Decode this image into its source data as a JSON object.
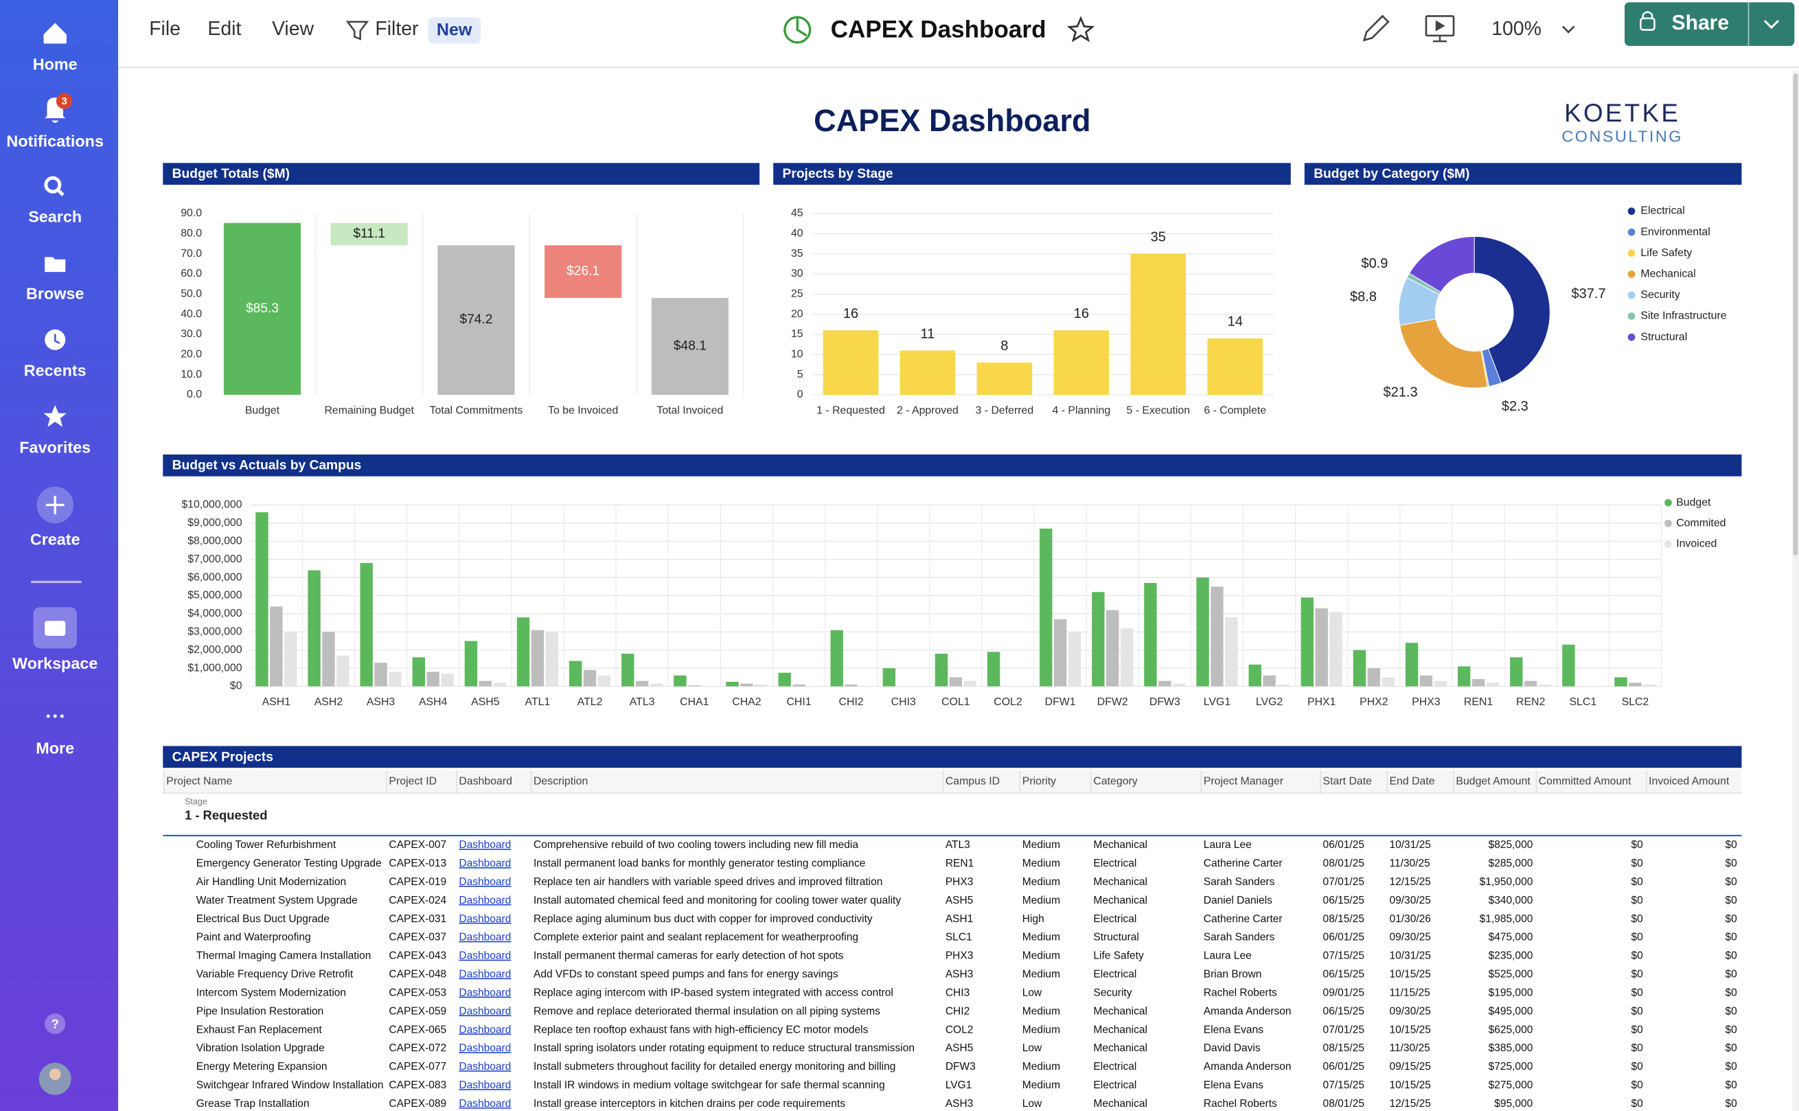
{
  "sidebar": {
    "items": [
      "Home",
      "Notifications",
      "Search",
      "Browse",
      "Recents",
      "Favorites",
      "Create",
      "Workspace",
      "More"
    ],
    "notification_count": "3"
  },
  "toolbar": {
    "menu": [
      "File",
      "Edit",
      "View",
      "Filter"
    ],
    "badge": "New",
    "title": "CAPEX Dashboard",
    "zoom": "100%",
    "share": "Share"
  },
  "dashboard": {
    "title": "CAPEX Dashboard",
    "logo": [
      "KOETKE",
      "CONSULTING"
    ]
  },
  "chart_data": [
    {
      "type": "waterfall",
      "title": "Budget Totals ($M)",
      "categories": [
        "Budget",
        "Remaining Budget",
        "Total Commitments",
        "To be Invoiced",
        "Total Invoiced"
      ],
      "values": [
        85.3,
        11.1,
        74.2,
        26.1,
        48.1
      ],
      "value_labels": [
        "$85.3",
        "$11.1",
        "$74.2",
        "$26.1",
        "$48.1"
      ],
      "measure": [
        "total",
        "decrease",
        "total",
        "decrease",
        "total"
      ],
      "colors": [
        "#5cb85c",
        "#c8e8c2",
        "#bdbdbd",
        "#ec847c",
        "#bdbdbd"
      ],
      "ylim": [
        0,
        90
      ],
      "yticks": [
        {
          "value": 0,
          "label": "0.0"
        },
        {
          "value": 10,
          "label": "10.0"
        },
        {
          "value": 20,
          "label": "20.0"
        },
        {
          "value": 30,
          "label": "30.0"
        },
        {
          "value": 40,
          "label": "40.0"
        },
        {
          "value": 50,
          "label": "50.0"
        },
        {
          "value": 60,
          "label": "60.0"
        },
        {
          "value": 70,
          "label": "70.0"
        },
        {
          "value": 80,
          "label": "80.0"
        },
        {
          "value": 90,
          "label": "90.0"
        }
      ],
      "grid": false
    },
    {
      "type": "bar",
      "title": "Projects by Stage",
      "categories": [
        "1 - Requested",
        "2 - Approved",
        "3 - Deferred",
        "4 - Planning",
        "5 - Execution",
        "6 - Complete"
      ],
      "values": [
        16,
        11,
        8,
        16,
        35,
        14
      ],
      "color": "#f8d84a",
      "ylim": [
        0,
        45
      ],
      "yticks": [
        0,
        5,
        10,
        15,
        20,
        25,
        30,
        35,
        40,
        45
      ],
      "grid": true
    },
    {
      "type": "donut",
      "title": "Budget by Category ($M)",
      "categories": [
        "Electrical",
        "Environmental",
        "Life Safety",
        "Mechanical",
        "Security",
        "Site Infrastructure",
        "Structural"
      ],
      "values": [
        37.7,
        2.3,
        0.3,
        21.3,
        8.8,
        0.9,
        14.0
      ],
      "value_labels": [
        "$37.7",
        "$2.3",
        null,
        "$21.3",
        "$8.8",
        "$0.9",
        null
      ],
      "colors": [
        "#1a2f8f",
        "#5a7fd8",
        "#f5d547",
        "#e6a23c",
        "#a3cdf0",
        "#86c2b6",
        "#6a48d8"
      ],
      "legend": "right"
    },
    {
      "type": "grouped_bar",
      "title": "Budget vs Actuals by Campus",
      "categories": [
        "ASH1",
        "ASH2",
        "ASH3",
        "ASH4",
        "ASH5",
        "ATL1",
        "ATL2",
        "ATL3",
        "CHA1",
        "CHA2",
        "CHI1",
        "CHI2",
        "CHI3",
        "COL1",
        "COL2",
        "DFW1",
        "DFW2",
        "DFW3",
        "LVG1",
        "LVG2",
        "PHX1",
        "PHX2",
        "PHX3",
        "REN1",
        "REN2",
        "SLC1",
        "SLC2"
      ],
      "series": [
        {
          "name": "Budget",
          "color": "#5cb85c",
          "values": [
            9600000,
            6400000,
            6800000,
            1600000,
            2500000,
            3800000,
            1400000,
            1800000,
            600000,
            250000,
            750000,
            3100000,
            1000000,
            1800000,
            1900000,
            8700000,
            5200000,
            5700000,
            6000000,
            1200000,
            4900000,
            2000000,
            2400000,
            1100000,
            1600000,
            2300000,
            500000
          ]
        },
        {
          "name": "Commited",
          "color": "#bdbdbd",
          "values": [
            4400000,
            3000000,
            1300000,
            800000,
            300000,
            3100000,
            900000,
            300000,
            50000,
            150000,
            100000,
            100000,
            0,
            500000,
            0,
            3700000,
            4200000,
            300000,
            5500000,
            600000,
            4300000,
            1000000,
            600000,
            400000,
            300000,
            0,
            200000
          ]
        },
        {
          "name": "Invoiced",
          "color": "#e4e4e4",
          "values": [
            3000000,
            1700000,
            800000,
            700000,
            200000,
            3000000,
            600000,
            150000,
            0,
            100000,
            0,
            0,
            0,
            300000,
            0,
            3000000,
            3200000,
            150000,
            3800000,
            100000,
            4100000,
            500000,
            300000,
            200000,
            100000,
            0,
            100000
          ]
        }
      ],
      "ylim": [
        0,
        10000000
      ],
      "yticks": [
        {
          "value": 0,
          "label": "$0"
        },
        {
          "value": 1000000,
          "label": "$1,000,000"
        },
        {
          "value": 2000000,
          "label": "$2,000,000"
        },
        {
          "value": 3000000,
          "label": "$3,000,000"
        },
        {
          "value": 4000000,
          "label": "$4,000,000"
        },
        {
          "value": 5000000,
          "label": "$5,000,000"
        },
        {
          "value": 6000000,
          "label": "$6,000,000"
        },
        {
          "value": 7000000,
          "label": "$7,000,000"
        },
        {
          "value": 8000000,
          "label": "$8,000,000"
        },
        {
          "value": 9000000,
          "label": "$9,000,000"
        },
        {
          "value": 10000000,
          "label": "$10,000,000"
        }
      ],
      "grid": true,
      "legend": "right"
    }
  ],
  "table": {
    "title": "CAPEX Projects",
    "columns": [
      "Project Name",
      "Project ID",
      "Dashboard",
      "Description",
      "Campus ID",
      "Priority",
      "Category",
      "Project Manager",
      "Start Date",
      "End Date",
      "Budget Amount",
      "Committed Amount",
      "Invoiced Amount"
    ],
    "group_label": "Stage",
    "group": "1 - Requested",
    "rows": [
      [
        "Cooling Tower Refurbishment",
        "CAPEX-007",
        "Dashboard",
        "Comprehensive rebuild of two cooling towers including new fill media",
        "ATL3",
        "Medium",
        "Mechanical",
        "Laura Lee",
        "06/01/25",
        "10/31/25",
        "$825,000",
        "$0",
        "$0"
      ],
      [
        "Emergency Generator Testing Upgrade",
        "CAPEX-013",
        "Dashboard",
        "Install permanent load banks for monthly generator testing compliance",
        "REN1",
        "Medium",
        "Electrical",
        "Catherine Carter",
        "08/01/25",
        "11/30/25",
        "$285,000",
        "$0",
        "$0"
      ],
      [
        "Air Handling Unit Modernization",
        "CAPEX-019",
        "Dashboard",
        "Replace ten air handlers with variable speed drives and improved filtration",
        "PHX3",
        "Medium",
        "Mechanical",
        "Sarah Sanders",
        "07/01/25",
        "12/15/25",
        "$1,950,000",
        "$0",
        "$0"
      ],
      [
        "Water Treatment System Upgrade",
        "CAPEX-024",
        "Dashboard",
        "Install automated chemical feed and monitoring for cooling tower water quality",
        "ASH5",
        "Medium",
        "Mechanical",
        "Daniel Daniels",
        "06/15/25",
        "09/30/25",
        "$340,000",
        "$0",
        "$0"
      ],
      [
        "Electrical Bus Duct Upgrade",
        "CAPEX-031",
        "Dashboard",
        "Replace aging aluminum bus duct with copper for improved conductivity",
        "ASH1",
        "High",
        "Electrical",
        "Catherine Carter",
        "08/15/25",
        "01/30/26",
        "$1,985,000",
        "$0",
        "$0"
      ],
      [
        "Paint and Waterproofing",
        "CAPEX-037",
        "Dashboard",
        "Complete exterior paint and sealant replacement for weatherproofing",
        "SLC1",
        "Medium",
        "Structural",
        "Sarah Sanders",
        "06/01/25",
        "09/30/25",
        "$475,000",
        "$0",
        "$0"
      ],
      [
        "Thermal Imaging Camera Installation",
        "CAPEX-043",
        "Dashboard",
        "Install permanent thermal cameras for early detection of hot spots",
        "PHX3",
        "Medium",
        "Life Safety",
        "Laura Lee",
        "07/15/25",
        "10/31/25",
        "$235,000",
        "$0",
        "$0"
      ],
      [
        "Variable Frequency Drive Retrofit",
        "CAPEX-048",
        "Dashboard",
        "Add VFDs to constant speed pumps and fans for energy savings",
        "ASH3",
        "Medium",
        "Electrical",
        "Brian Brown",
        "06/15/25",
        "10/15/25",
        "$525,000",
        "$0",
        "$0"
      ],
      [
        "Intercom System Modernization",
        "CAPEX-053",
        "Dashboard",
        "Replace aging intercom with IP-based system integrated with access control",
        "CHI3",
        "Low",
        "Security",
        "Rachel Roberts",
        "09/01/25",
        "11/15/25",
        "$195,000",
        "$0",
        "$0"
      ],
      [
        "Pipe Insulation Restoration",
        "CAPEX-059",
        "Dashboard",
        "Remove and replace deteriorated thermal insulation on all piping systems",
        "CHI2",
        "Medium",
        "Mechanical",
        "Amanda Anderson",
        "06/15/25",
        "09/30/25",
        "$495,000",
        "$0",
        "$0"
      ],
      [
        "Exhaust Fan Replacement",
        "CAPEX-065",
        "Dashboard",
        "Replace ten rooftop exhaust fans with high-efficiency EC motor models",
        "COL2",
        "Medium",
        "Mechanical",
        "Elena Evans",
        "07/01/25",
        "10/15/25",
        "$625,000",
        "$0",
        "$0"
      ],
      [
        "Vibration Isolation Upgrade",
        "CAPEX-072",
        "Dashboard",
        "Install spring isolators under rotating equipment to reduce structural transmission",
        "ASH5",
        "Low",
        "Mechanical",
        "David Davis",
        "08/15/25",
        "11/30/25",
        "$385,000",
        "$0",
        "$0"
      ],
      [
        "Energy Metering Expansion",
        "CAPEX-077",
        "Dashboard",
        "Install submeters throughout facility for detailed energy monitoring and billing",
        "DFW3",
        "Medium",
        "Electrical",
        "Amanda Anderson",
        "06/01/25",
        "09/15/25",
        "$725,000",
        "$0",
        "$0"
      ],
      [
        "Switchgear Infrared Window Installation",
        "CAPEX-083",
        "Dashboard",
        "Install IR windows in medium voltage switchgear for safe thermal scanning",
        "LVG1",
        "Medium",
        "Electrical",
        "Elena Evans",
        "07/15/25",
        "10/15/25",
        "$275,000",
        "$0",
        "$0"
      ],
      [
        "Grease Trap Installation",
        "CAPEX-089",
        "Dashboard",
        "Install grease interceptors in kitchen drains per code requirements",
        "ASH3",
        "Low",
        "Mechanical",
        "Rachel Roberts",
        "08/01/25",
        "12/15/25",
        "$95,000",
        "$0",
        "$0"
      ]
    ]
  }
}
